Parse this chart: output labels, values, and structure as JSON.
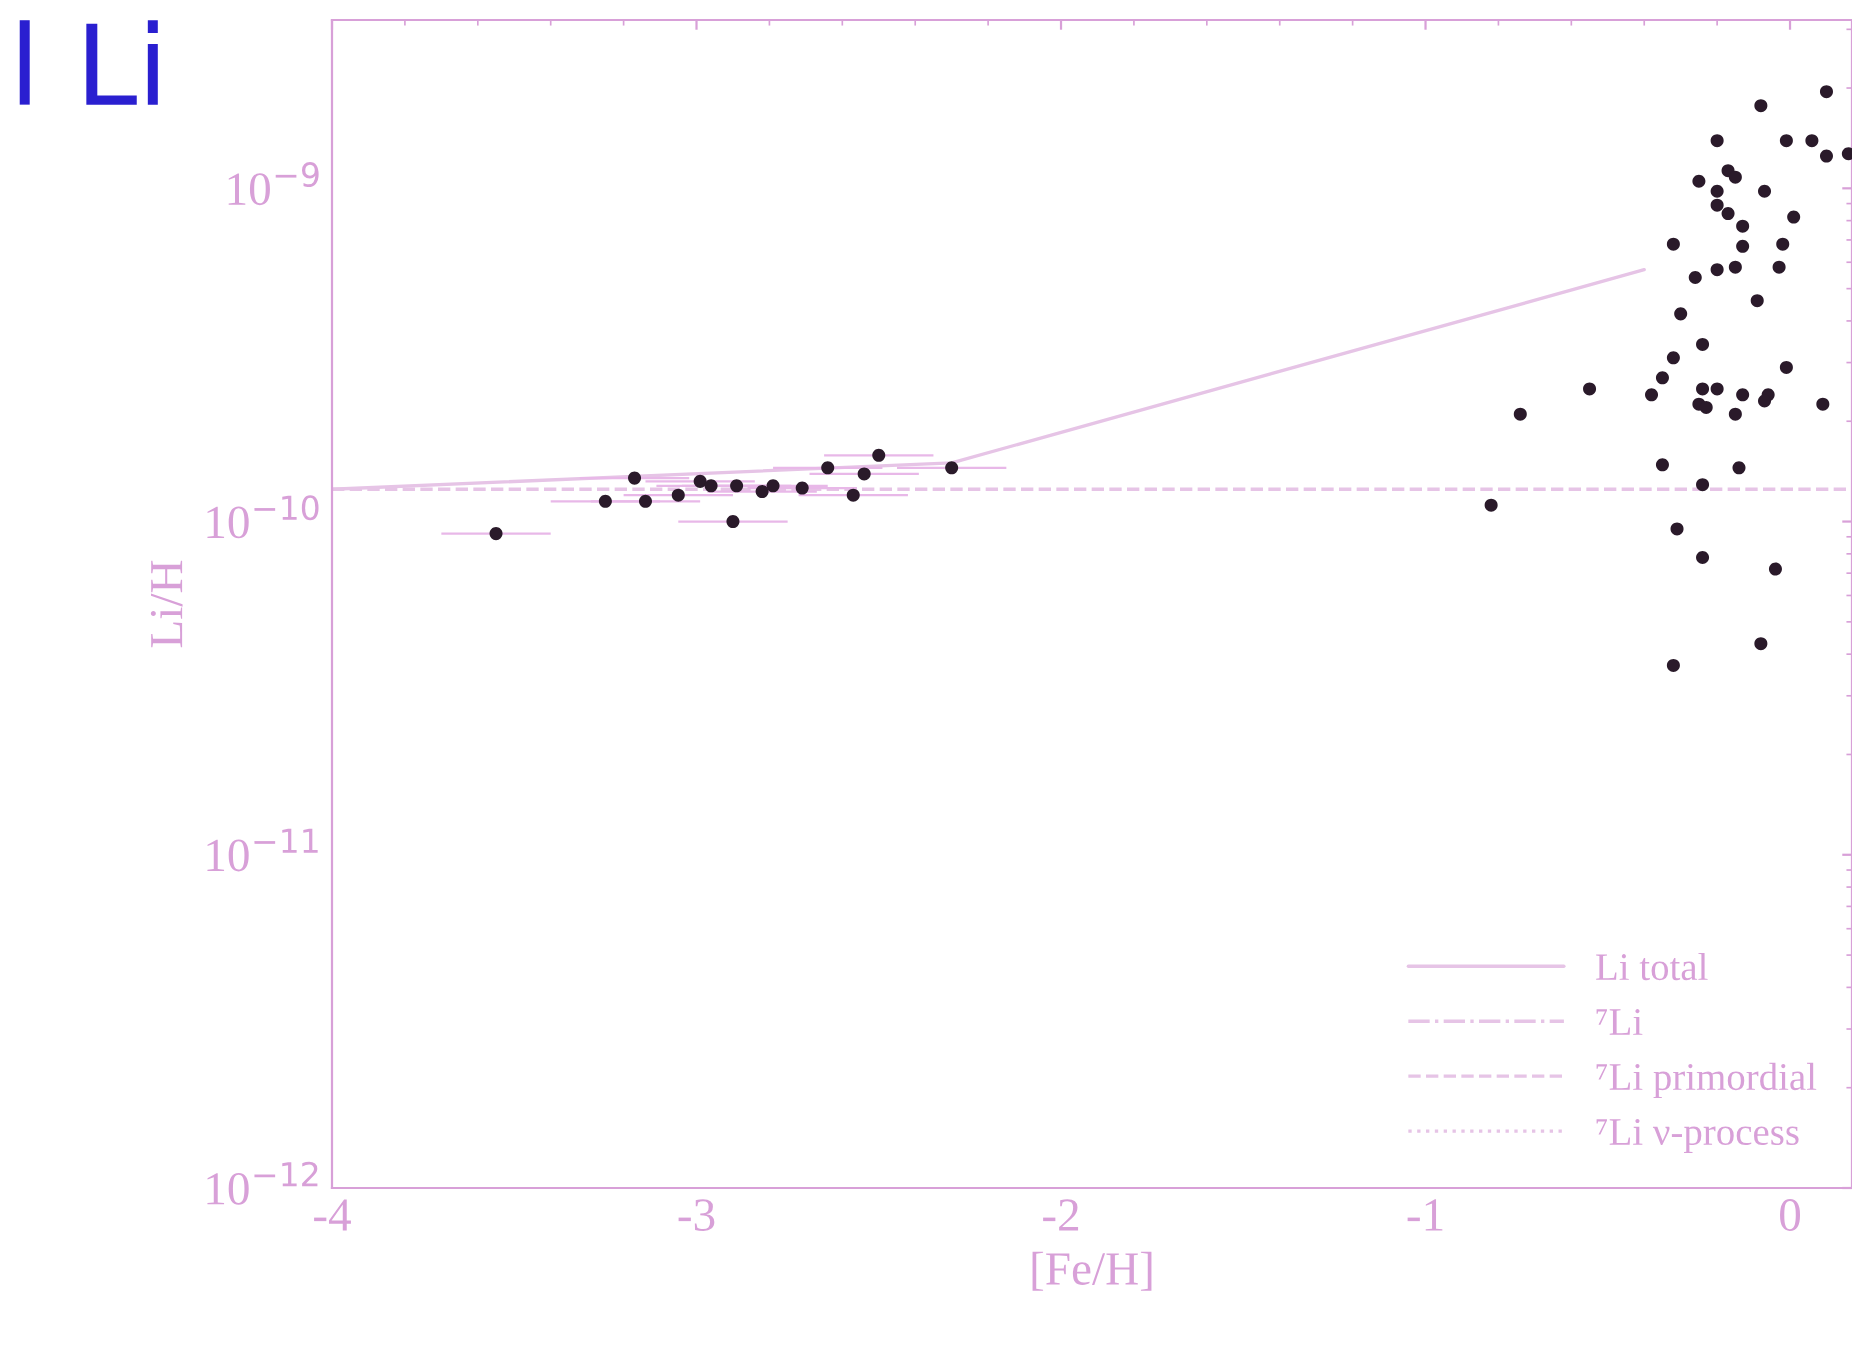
{
  "chart_data": {
    "type": "scatter",
    "title": "l Li",
    "xlabel": "[Fe/H]",
    "ylabel": "Li/H",
    "log": "y",
    "xlim": [
      -4,
      0.17
    ],
    "ylim": [
      1e-12,
      3.2e-09
    ],
    "xticks": [
      -4,
      -3,
      -2,
      -1,
      0
    ],
    "yticks": [
      {
        "value": 1e-12,
        "label": "10$^{−12}$"
      },
      {
        "value": 1e-11,
        "label": "10$^{−11}$"
      },
      {
        "value": 1e-10,
        "label": "10$^{−10}$"
      },
      {
        "value": 1e-09,
        "label": "10$^{−9}$"
      }
    ],
    "grid": false,
    "legend": "bottom right",
    "marker": "circle",
    "series": [
      {
        "color": "#2a1a2a",
        "x": [
          -3.55,
          -3.25,
          -3.17,
          -3.14,
          -3.05,
          -2.99,
          -2.96,
          -2.89,
          -2.9,
          -2.82,
          -2.79,
          -2.71,
          -2.64,
          -2.57,
          -2.54,
          -2.5,
          -2.3
        ],
        "values": [
          9.2e-11,
          1.15e-10,
          1.35e-10,
          1.15e-10,
          1.2e-10,
          1.32e-10,
          1.28e-10,
          1.28e-10,
          1e-10,
          1.23e-10,
          1.28e-10,
          1.26e-10,
          1.45e-10,
          1.2e-10,
          1.39e-10,
          1.58e-10,
          1.45e-10
        ],
        "xerrors": [
          0.15,
          0.15,
          0.15,
          0.15,
          0.15,
          0.15,
          0.15,
          0.15,
          0.15,
          0.15,
          0.15,
          0.15,
          0.15,
          0.15,
          0.15,
          0.15,
          0.15
        ]
      },
      {
        "color": "#2a1a2a",
        "x": [
          0.1,
          -0.08,
          -0.2,
          -0.01,
          0.06,
          0.1,
          0.16,
          -0.25,
          -0.17,
          -0.15,
          -0.2,
          -0.07,
          -0.2,
          -0.17,
          -0.13,
          0.01,
          -0.32,
          -0.13,
          -0.02,
          -0.2,
          -0.15,
          -0.03,
          -0.26,
          -0.09,
          -0.3,
          -0.24,
          -0.32,
          -0.35,
          -0.01,
          -0.55,
          -0.38,
          -0.24,
          -0.2,
          -0.13,
          -0.06,
          -0.25,
          -0.23,
          -0.15,
          -0.07,
          0.09,
          -0.74,
          -0.35,
          -0.14,
          -0.24,
          -0.82,
          -0.31,
          -0.24,
          -0.04,
          -0.08,
          -0.32
        ],
        "values": [
          1.95e-09,
          1.77e-09,
          1.39e-09,
          1.39e-09,
          1.39e-09,
          1.25e-09,
          1.27e-09,
          1.05e-09,
          1.13e-09,
          1.08e-09,
          9.8e-10,
          9.8e-10,
          8.9e-10,
          8.4e-10,
          7.7e-10,
          8.2e-10,
          6.8e-10,
          6.7e-10,
          6.8e-10,
          5.7e-10,
          5.8e-10,
          5.8e-10,
          5.4e-10,
          4.6e-10,
          4.2e-10,
          3.4e-10,
          3.1e-10,
          2.7e-10,
          2.9e-10,
          2.5e-10,
          2.4e-10,
          2.5e-10,
          2.5e-10,
          2.4e-10,
          2.4e-10,
          2.25e-10,
          2.2e-10,
          2.1e-10,
          2.3e-10,
          2.25e-10,
          2.1e-10,
          1.48e-10,
          1.45e-10,
          1.29e-10,
          1.12e-10,
          9.5e-11,
          7.8e-11,
          7.2e-11,
          4.3e-11,
          3.7e-11
        ]
      },
      {
        "name": "Li total",
        "type": "line",
        "line_style": "solid",
        "marker": "none",
        "color": "#e6c4e6",
        "x": [
          -4,
          -2.3,
          -0.4
        ],
        "values": [
          1.25e-10,
          1.5e-10,
          5.7e-10
        ]
      },
      {
        "name": "⁷Li",
        "type": "line",
        "line_style": "dashdot",
        "marker": "none",
        "color": "#e6c4e6"
      },
      {
        "name": "⁷Li primordial",
        "type": "line",
        "line_style": "dashed",
        "marker": "none",
        "color": "#e6c4e6",
        "x": [
          -4,
          0.17
        ],
        "values": [
          1.25e-10,
          1.25e-10
        ]
      },
      {
        "name": "⁷Li ν-process",
        "type": "line",
        "line_style": "dotted",
        "marker": "none",
        "color": "#e6c4e6"
      }
    ]
  }
}
